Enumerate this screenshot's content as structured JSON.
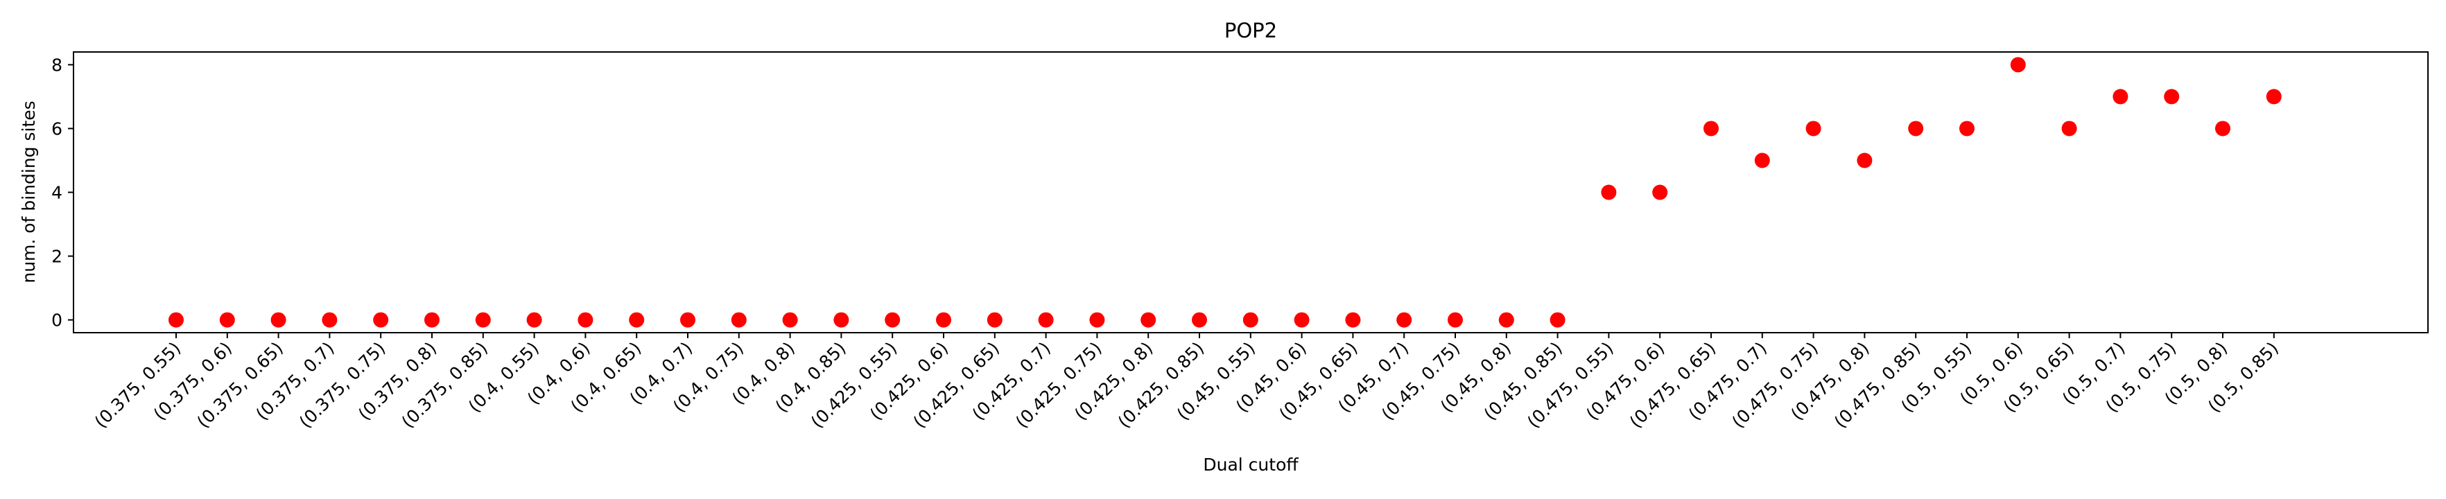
{
  "chart_data": {
    "type": "scatter",
    "title": "POP2",
    "xlabel": "Dual cutoff",
    "ylabel": "num. of binding sites",
    "categories": [
      "(0.375, 0.55)",
      "(0.375, 0.6)",
      "(0.375, 0.65)",
      "(0.375, 0.7)",
      "(0.375, 0.75)",
      "(0.375, 0.8)",
      "(0.375, 0.85)",
      "(0.4, 0.55)",
      "(0.4, 0.6)",
      "(0.4, 0.65)",
      "(0.4, 0.7)",
      "(0.4, 0.75)",
      "(0.4, 0.8)",
      "(0.4, 0.85)",
      "(0.425, 0.55)",
      "(0.425, 0.6)",
      "(0.425, 0.65)",
      "(0.425, 0.7)",
      "(0.425, 0.75)",
      "(0.425, 0.8)",
      "(0.425, 0.85)",
      "(0.45, 0.55)",
      "(0.45, 0.6)",
      "(0.45, 0.65)",
      "(0.45, 0.7)",
      "(0.45, 0.75)",
      "(0.45, 0.8)",
      "(0.45, 0.85)",
      "(0.475, 0.55)",
      "(0.475, 0.6)",
      "(0.475, 0.65)",
      "(0.475, 0.7)",
      "(0.475, 0.75)",
      "(0.475, 0.8)",
      "(0.475, 0.85)",
      "(0.5, 0.55)",
      "(0.5, 0.6)",
      "(0.5, 0.65)",
      "(0.5, 0.7)",
      "(0.5, 0.75)",
      "(0.5, 0.8)",
      "(0.5, 0.85)"
    ],
    "values": [
      0,
      0,
      0,
      0,
      0,
      0,
      0,
      0,
      0,
      0,
      0,
      0,
      0,
      0,
      0,
      0,
      0,
      0,
      0,
      0,
      0,
      0,
      0,
      0,
      0,
      0,
      0,
      0,
      4,
      4,
      6,
      5,
      6,
      5,
      6,
      6,
      8,
      6,
      7,
      7,
      6,
      7
    ],
    "yticks": [
      0,
      2,
      4,
      6,
      8
    ],
    "ylim": [
      -0.4,
      8.4
    ],
    "marker_color": "#ff0000",
    "grid": false,
    "legend": "none"
  }
}
